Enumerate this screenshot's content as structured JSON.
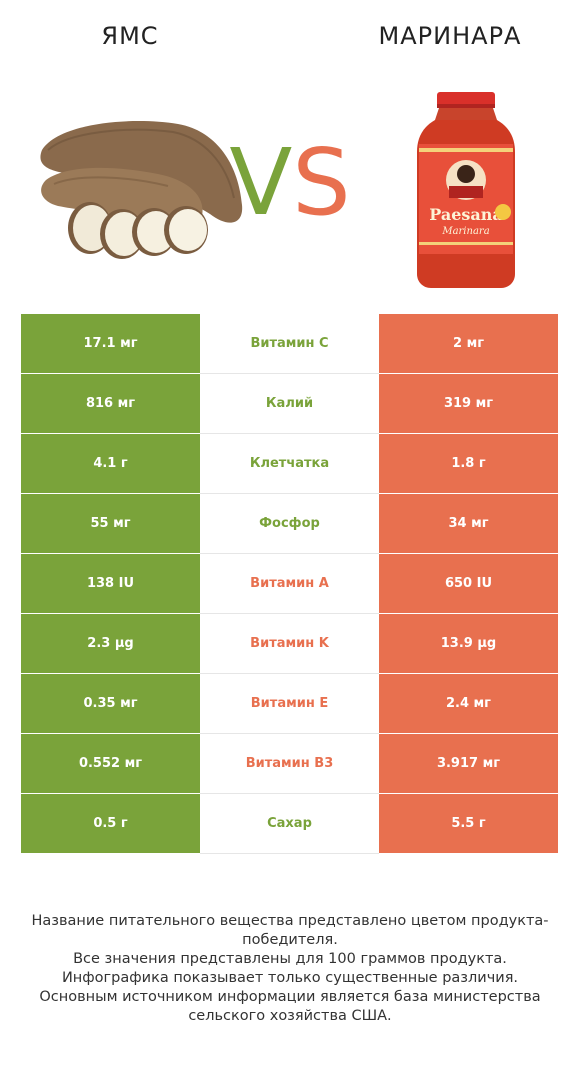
{
  "header": {
    "left_title": "ЯМС",
    "right_title": "МАРИНАРА",
    "vs_v": "V",
    "vs_s": "S",
    "colors": {
      "left": "#7aa33a",
      "right": "#e8704f"
    }
  },
  "images": {
    "left_icon": "yam-image",
    "right_icon": "marinara-jar-image",
    "jar_label": "Paesana",
    "jar_sublabel": "Marinara"
  },
  "rows": [
    {
      "left": "17.1 мг",
      "nutrient": "Витамин C",
      "right": "2 мг",
      "winner": "left"
    },
    {
      "left": "816 мг",
      "nutrient": "Калий",
      "right": "319 мг",
      "winner": "left"
    },
    {
      "left": "4.1 г",
      "nutrient": "Клетчатка",
      "right": "1.8 г",
      "winner": "left"
    },
    {
      "left": "55 мг",
      "nutrient": "Фосфор",
      "right": "34 мг",
      "winner": "left"
    },
    {
      "left": "138 IU",
      "nutrient": "Витамин A",
      "right": "650 IU",
      "winner": "right"
    },
    {
      "left": "2.3 µg",
      "nutrient": "Витамин K",
      "right": "13.9 µg",
      "winner": "right"
    },
    {
      "left": "0.35 мг",
      "nutrient": "Витамин E",
      "right": "2.4 мг",
      "winner": "right"
    },
    {
      "left": "0.552 мг",
      "nutrient": "Витамин B3",
      "right": "3.917 мг",
      "winner": "right"
    },
    {
      "left": "0.5 г",
      "nutrient": "Сахар",
      "right": "5.5 г",
      "winner": "left"
    }
  ],
  "footer": [
    "Название питательного вещества представлено цветом продукта-победителя.",
    "Все значения представлены для 100 граммов продукта.",
    "Инфографика показывает только существенные различия.",
    "Основным источником информации является база министерства сельского хозяйства США."
  ]
}
